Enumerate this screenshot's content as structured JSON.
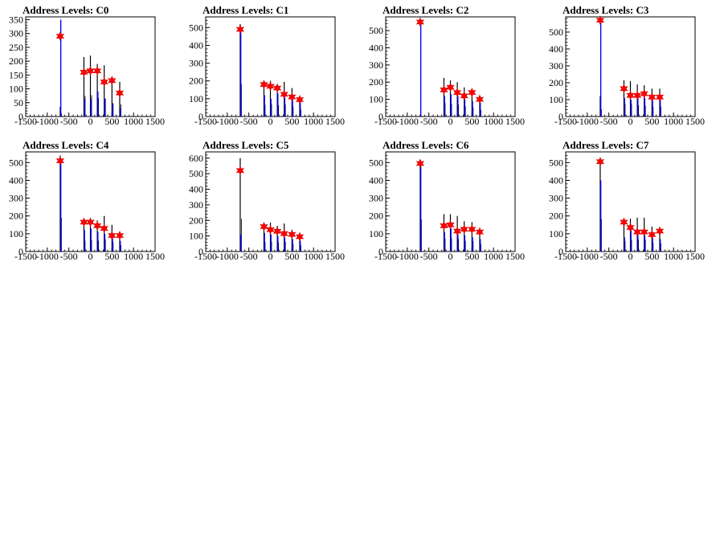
{
  "chart_data": [
    {
      "type": "histogram",
      "title": "Address Levels: C0",
      "xlim": [
        -1500,
        1500
      ],
      "ylim": [
        0,
        360
      ],
      "yticks": [
        0,
        50,
        100,
        150,
        200,
        250,
        300,
        350
      ],
      "xticks": [
        -1500,
        -1000,
        -500,
        0,
        500,
        1000,
        1500
      ],
      "black_bars": [
        {
          "x": -700,
          "y": 35
        },
        {
          "x": -150,
          "y": 215
        },
        {
          "x": 0,
          "y": 220
        },
        {
          "x": 160,
          "y": 190
        },
        {
          "x": 320,
          "y": 185
        },
        {
          "x": 500,
          "y": 140
        },
        {
          "x": 680,
          "y": 125
        }
      ],
      "blue_bars": [
        {
          "x": -700,
          "y": 350
        },
        {
          "x": -150,
          "y": 65
        },
        {
          "x": 0,
          "y": 65
        },
        {
          "x": 160,
          "y": 90
        },
        {
          "x": 320,
          "y": 65
        },
        {
          "x": 500,
          "y": 45
        },
        {
          "x": 680,
          "y": 30
        }
      ],
      "peaks": [
        {
          "x": -700,
          "y": 290
        },
        {
          "x": -150,
          "y": 160
        },
        {
          "x": 0,
          "y": 165
        },
        {
          "x": 160,
          "y": 165
        },
        {
          "x": 320,
          "y": 125
        },
        {
          "x": 500,
          "y": 130
        },
        {
          "x": 680,
          "y": 85
        }
      ]
    },
    {
      "type": "histogram",
      "title": "Address Levels: C1",
      "xlim": [
        -1500,
        1500
      ],
      "ylim": [
        0,
        560
      ],
      "yticks": [
        0,
        100,
        200,
        300,
        400,
        500
      ],
      "xticks": [
        -1500,
        -1000,
        -500,
        0,
        500,
        1000,
        1500
      ],
      "black_bars": [
        {
          "x": -700,
          "y": 520
        },
        {
          "x": -150,
          "y": 190
        },
        {
          "x": 0,
          "y": 200
        },
        {
          "x": 160,
          "y": 180
        },
        {
          "x": 320,
          "y": 195
        },
        {
          "x": 500,
          "y": 160
        },
        {
          "x": 680,
          "y": 110
        }
      ],
      "blue_bars": [
        {
          "x": -700,
          "y": 480
        },
        {
          "x": -150,
          "y": 120
        },
        {
          "x": 0,
          "y": 100
        },
        {
          "x": 160,
          "y": 130
        },
        {
          "x": 320,
          "y": 110
        },
        {
          "x": 500,
          "y": 100
        },
        {
          "x": 680,
          "y": 90
        }
      ],
      "peaks": [
        {
          "x": -700,
          "y": 490
        },
        {
          "x": -150,
          "y": 180
        },
        {
          "x": 0,
          "y": 170
        },
        {
          "x": 160,
          "y": 160
        },
        {
          "x": 320,
          "y": 125
        },
        {
          "x": 500,
          "y": 110
        },
        {
          "x": 680,
          "y": 95
        }
      ]
    },
    {
      "type": "histogram",
      "title": "Address Levels: C2",
      "xlim": [
        -1500,
        1500
      ],
      "ylim": [
        0,
        580
      ],
      "yticks": [
        0,
        100,
        200,
        300,
        400,
        500
      ],
      "xticks": [
        -1500,
        -1000,
        -500,
        0,
        500,
        1000,
        1500
      ],
      "black_bars": [
        {
          "x": -700,
          "y": 10
        },
        {
          "x": -150,
          "y": 225
        },
        {
          "x": 0,
          "y": 210
        },
        {
          "x": 160,
          "y": 200
        },
        {
          "x": 320,
          "y": 170
        },
        {
          "x": 500,
          "y": 150
        },
        {
          "x": 680,
          "y": 110
        }
      ],
      "blue_bars": [
        {
          "x": -700,
          "y": 555
        },
        {
          "x": -150,
          "y": 120
        },
        {
          "x": 0,
          "y": 130
        },
        {
          "x": 160,
          "y": 120
        },
        {
          "x": 320,
          "y": 100
        },
        {
          "x": 500,
          "y": 90
        },
        {
          "x": 680,
          "y": 80
        }
      ],
      "peaks": [
        {
          "x": -700,
          "y": 550
        },
        {
          "x": -150,
          "y": 155
        },
        {
          "x": 0,
          "y": 170
        },
        {
          "x": 160,
          "y": 140
        },
        {
          "x": 320,
          "y": 120
        },
        {
          "x": 500,
          "y": 140
        },
        {
          "x": 680,
          "y": 100
        }
      ]
    },
    {
      "type": "histogram",
      "title": "Address Levels: C3",
      "xlim": [
        -1500,
        1500
      ],
      "ylim": [
        0,
        590
      ],
      "yticks": [
        0,
        100,
        200,
        300,
        400,
        500
      ],
      "xticks": [
        -1500,
        -1000,
        -500,
        0,
        500,
        1000,
        1500
      ],
      "black_bars": [
        {
          "x": -700,
          "y": 120
        },
        {
          "x": -150,
          "y": 215
        },
        {
          "x": 0,
          "y": 210
        },
        {
          "x": 160,
          "y": 190
        },
        {
          "x": 320,
          "y": 185
        },
        {
          "x": 500,
          "y": 165
        },
        {
          "x": 680,
          "y": 165
        }
      ],
      "blue_bars": [
        {
          "x": -700,
          "y": 575
        },
        {
          "x": -150,
          "y": 110
        },
        {
          "x": 0,
          "y": 100
        },
        {
          "x": 160,
          "y": 120
        },
        {
          "x": 320,
          "y": 110
        },
        {
          "x": 500,
          "y": 100
        },
        {
          "x": 680,
          "y": 100
        }
      ],
      "peaks": [
        {
          "x": -700,
          "y": 570
        },
        {
          "x": -150,
          "y": 165
        },
        {
          "x": 0,
          "y": 125
        },
        {
          "x": 160,
          "y": 125
        },
        {
          "x": 320,
          "y": 135
        },
        {
          "x": 500,
          "y": 115
        },
        {
          "x": 680,
          "y": 115
        }
      ]
    },
    {
      "type": "histogram",
      "title": "Address Levels: C4",
      "xlim": [
        -1500,
        1500
      ],
      "ylim": [
        0,
        560
      ],
      "yticks": [
        0,
        100,
        200,
        300,
        400,
        500
      ],
      "xticks": [
        -1500,
        -1000,
        -500,
        0,
        500,
        1000,
        1500
      ],
      "black_bars": [
        {
          "x": -700,
          "y": 540
        },
        {
          "x": -150,
          "y": 175
        },
        {
          "x": 0,
          "y": 180
        },
        {
          "x": 160,
          "y": 175
        },
        {
          "x": 320,
          "y": 200
        },
        {
          "x": 500,
          "y": 150
        },
        {
          "x": 680,
          "y": 105
        }
      ],
      "blue_bars": [
        {
          "x": -700,
          "y": 500
        },
        {
          "x": -150,
          "y": 120
        },
        {
          "x": 0,
          "y": 130
        },
        {
          "x": 160,
          "y": 110
        },
        {
          "x": 320,
          "y": 100
        },
        {
          "x": 500,
          "y": 80
        },
        {
          "x": 680,
          "y": 60
        }
      ],
      "peaks": [
        {
          "x": -700,
          "y": 510
        },
        {
          "x": -150,
          "y": 165
        },
        {
          "x": 0,
          "y": 165
        },
        {
          "x": 160,
          "y": 145
        },
        {
          "x": 320,
          "y": 130
        },
        {
          "x": 500,
          "y": 90
        },
        {
          "x": 680,
          "y": 90
        }
      ]
    },
    {
      "type": "histogram",
      "title": "Address Levels: C5",
      "xlim": [
        -1500,
        1500
      ],
      "ylim": [
        0,
        640
      ],
      "yticks": [
        0,
        100,
        200,
        300,
        400,
        500,
        600
      ],
      "xticks": [
        -1500,
        -1000,
        -500,
        0,
        500,
        1000,
        1500
      ],
      "black_bars": [
        {
          "x": -700,
          "y": 600
        },
        {
          "x": -150,
          "y": 175
        },
        {
          "x": 0,
          "y": 185
        },
        {
          "x": 160,
          "y": 165
        },
        {
          "x": 320,
          "y": 180
        },
        {
          "x": 500,
          "y": 140
        },
        {
          "x": 680,
          "y": 110
        }
      ],
      "blue_bars": [
        {
          "x": -700,
          "y": 110
        },
        {
          "x": -150,
          "y": 120
        },
        {
          "x": 0,
          "y": 110
        },
        {
          "x": 160,
          "y": 100
        },
        {
          "x": 320,
          "y": 90
        },
        {
          "x": 500,
          "y": 80
        },
        {
          "x": 680,
          "y": 70
        }
      ],
      "peaks": [
        {
          "x": -700,
          "y": 520
        },
        {
          "x": -150,
          "y": 160
        },
        {
          "x": 0,
          "y": 140
        },
        {
          "x": 160,
          "y": 130
        },
        {
          "x": 320,
          "y": 115
        },
        {
          "x": 500,
          "y": 110
        },
        {
          "x": 680,
          "y": 95
        }
      ]
    },
    {
      "type": "histogram",
      "title": "Address Levels: C6",
      "xlim": [
        -1500,
        1500
      ],
      "ylim": [
        0,
        560
      ],
      "yticks": [
        0,
        100,
        200,
        300,
        400,
        500
      ],
      "xticks": [
        -1500,
        -1000,
        -500,
        0,
        500,
        1000,
        1500
      ],
      "black_bars": [
        {
          "x": -700,
          "y": 515
        },
        {
          "x": -150,
          "y": 210
        },
        {
          "x": 0,
          "y": 210
        },
        {
          "x": 160,
          "y": 200
        },
        {
          "x": 320,
          "y": 170
        },
        {
          "x": 500,
          "y": 165
        },
        {
          "x": 680,
          "y": 120
        }
      ],
      "blue_bars": [
        {
          "x": -700,
          "y": 490
        },
        {
          "x": -150,
          "y": 110
        },
        {
          "x": 0,
          "y": 130
        },
        {
          "x": 160,
          "y": 100
        },
        {
          "x": 320,
          "y": 90
        },
        {
          "x": 500,
          "y": 80
        },
        {
          "x": 680,
          "y": 70
        }
      ],
      "peaks": [
        {
          "x": -700,
          "y": 495
        },
        {
          "x": -150,
          "y": 145
        },
        {
          "x": 0,
          "y": 150
        },
        {
          "x": 160,
          "y": 115
        },
        {
          "x": 320,
          "y": 125
        },
        {
          "x": 500,
          "y": 125
        },
        {
          "x": 680,
          "y": 110
        }
      ]
    },
    {
      "type": "histogram",
      "title": "Address Levels: C7",
      "xlim": [
        -1500,
        1500
      ],
      "ylim": [
        0,
        560
      ],
      "yticks": [
        0,
        100,
        200,
        300,
        400,
        500
      ],
      "xticks": [
        -1500,
        -1000,
        -500,
        0,
        500,
        1000,
        1500
      ],
      "black_bars": [
        {
          "x": -700,
          "y": 520
        },
        {
          "x": -150,
          "y": 170
        },
        {
          "x": 0,
          "y": 185
        },
        {
          "x": 160,
          "y": 190
        },
        {
          "x": 320,
          "y": 190
        },
        {
          "x": 500,
          "y": 140
        },
        {
          "x": 680,
          "y": 130
        }
      ],
      "blue_bars": [
        {
          "x": -700,
          "y": 400
        },
        {
          "x": -150,
          "y": 80
        },
        {
          "x": 0,
          "y": 120
        },
        {
          "x": 160,
          "y": 100
        },
        {
          "x": 320,
          "y": 90
        },
        {
          "x": 500,
          "y": 80
        },
        {
          "x": 680,
          "y": 70
        }
      ],
      "peaks": [
        {
          "x": -700,
          "y": 505
        },
        {
          "x": -150,
          "y": 165
        },
        {
          "x": 0,
          "y": 135
        },
        {
          "x": 160,
          "y": 110
        },
        {
          "x": 320,
          "y": 110
        },
        {
          "x": 500,
          "y": 95
        },
        {
          "x": 680,
          "y": 115
        }
      ]
    }
  ]
}
